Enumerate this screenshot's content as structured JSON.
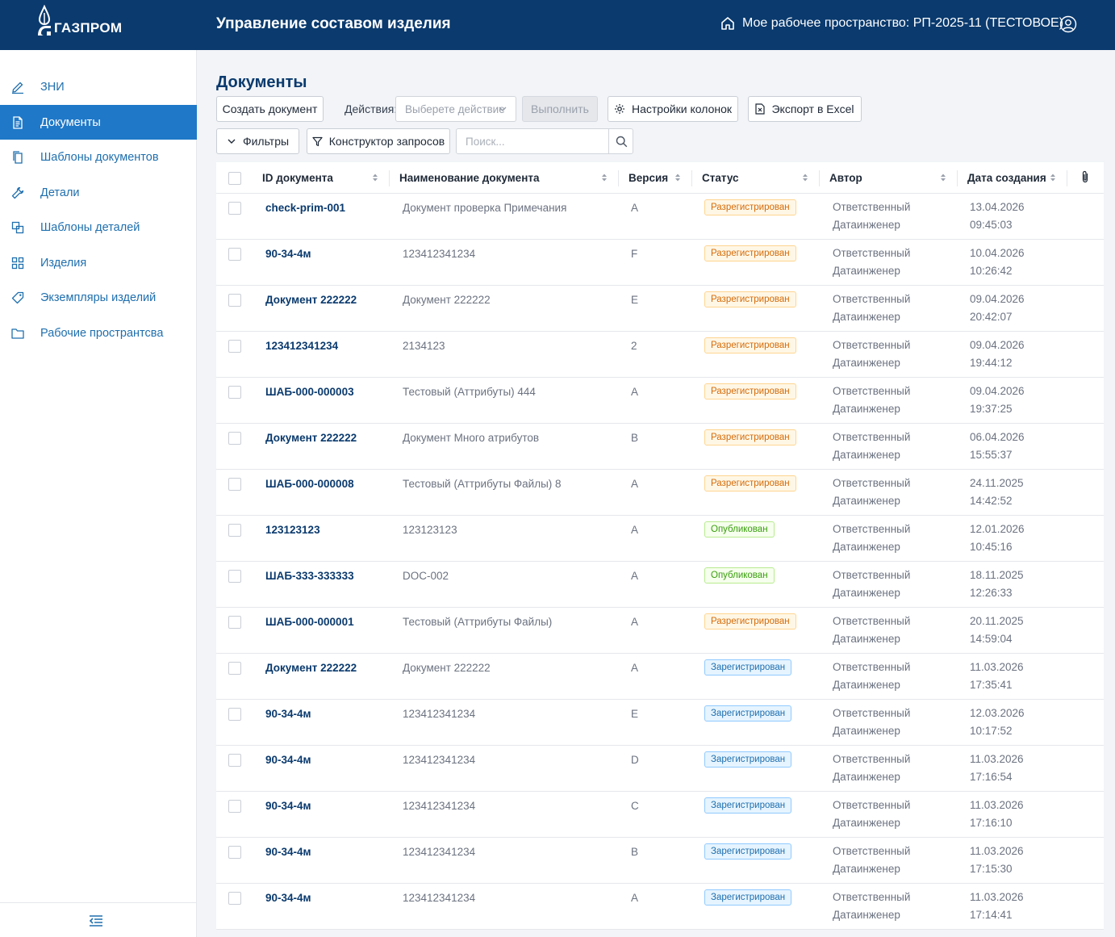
{
  "header": {
    "logo_text": "ГАЗПРОМ",
    "app_title": "Управление составом изделия",
    "workspace_label": "Мое рабочее пространство: РП-2025-11 (ТЕСТОВОЕ)"
  },
  "sidebar": {
    "items": [
      {
        "label": "ЗНИ",
        "icon": "pencil-icon"
      },
      {
        "label": "Документы",
        "icon": "document-icon"
      },
      {
        "label": "Шаблоны документов",
        "icon": "copy-icon"
      },
      {
        "label": "Детали",
        "icon": "wrench-icon"
      },
      {
        "label": "Шаблоны деталей",
        "icon": "block-icon"
      },
      {
        "label": "Изделия",
        "icon": "grid-icon"
      },
      {
        "label": "Экземпляры изделий",
        "icon": "tag-icon"
      },
      {
        "label": "Рабочие пространтсва",
        "icon": "folder-icon"
      }
    ],
    "active_index": 1
  },
  "page": {
    "title": "Документы",
    "create_button": "Создать документ",
    "actions_label": "Действия:",
    "actions_placeholder": "Выберете действие",
    "execute_button": "Выполнить",
    "columns_button": "Настройки колонок",
    "export_button": "Экспорт в Excel",
    "filters_button": "Фильтры",
    "query_button": "Конструктор запросов",
    "search_placeholder": "Поиск..."
  },
  "table": {
    "columns": [
      "ID документа",
      "Наименование документа",
      "Версия",
      "Статус",
      "Автор",
      "Дата создания"
    ],
    "rows": [
      {
        "id": "check-prim-001",
        "name": "Документ проверка Примечания",
        "version": "A",
        "status": "Разрегистрирован",
        "author1": "Ответственный",
        "author2": "Датаинженер",
        "date": "13.04.2026",
        "time": "09:45:03"
      },
      {
        "id": "90-34-4м",
        "name": "123412341234",
        "version": "F",
        "status": "Разрегистрирован",
        "author1": "Ответственный",
        "author2": "Датаинженер",
        "date": "10.04.2026",
        "time": "10:26:42"
      },
      {
        "id": "Документ 222222",
        "name": "Документ 222222",
        "version": "E",
        "status": "Разрегистрирован",
        "author1": "Ответственный",
        "author2": "Датаинженер",
        "date": "09.04.2026",
        "time": "20:42:07"
      },
      {
        "id": "123412341234",
        "name": "2134123",
        "version": "2",
        "status": "Разрегистрирован",
        "author1": "Ответственный",
        "author2": "Датаинженер",
        "date": "09.04.2026",
        "time": "19:44:12"
      },
      {
        "id": "ШАБ-000-000003",
        "name": "Тестовый (Аттрибуты) 444",
        "version": "A",
        "status": "Разрегистрирован",
        "author1": "Ответственный",
        "author2": "Датаинженер",
        "date": "09.04.2026",
        "time": "19:37:25"
      },
      {
        "id": "Документ 222222",
        "name": "Документ Много атрибутов",
        "version": "B",
        "status": "Разрегистрирован",
        "author1": "Ответственный",
        "author2": "Датаинженер",
        "date": "06.04.2026",
        "time": "15:55:37"
      },
      {
        "id": "ШАБ-000-000008",
        "name": "Тестовый (Аттрибуты Файлы) 8",
        "version": "A",
        "status": "Разрегистрирован",
        "author1": "Ответственный",
        "author2": "Датаинженер",
        "date": "24.11.2025",
        "time": "14:42:52"
      },
      {
        "id": "123123123",
        "name": "123123123",
        "version": "A",
        "status": "Опубликован",
        "author1": "Ответственный",
        "author2": "Датаинженер",
        "date": "12.01.2026",
        "time": "10:45:16"
      },
      {
        "id": "ШАБ-333-333333",
        "name": "DOC-002",
        "version": "A",
        "status": "Опубликован",
        "author1": "Ответственный",
        "author2": "Датаинженер",
        "date": "18.11.2025",
        "time": "12:26:33"
      },
      {
        "id": "ШАБ-000-000001",
        "name": "Тестовый (Аттрибуты Файлы)",
        "version": "A",
        "status": "Разрегистрирован",
        "author1": "Ответственный",
        "author2": "Датаинженер",
        "date": "20.11.2025",
        "time": "14:59:04"
      },
      {
        "id": "Документ 222222",
        "name": "Документ 222222",
        "version": "A",
        "status": "Зарегистрирован",
        "author1": "Ответственный",
        "author2": "Датаинженер",
        "date": "11.03.2026",
        "time": "17:35:41"
      },
      {
        "id": "90-34-4м",
        "name": "123412341234",
        "version": "E",
        "status": "Зарегистрирован",
        "author1": "Ответственный",
        "author2": "Датаинженер",
        "date": "12.03.2026",
        "time": "10:17:52"
      },
      {
        "id": "90-34-4м",
        "name": "123412341234",
        "version": "D",
        "status": "Зарегистрирован",
        "author1": "Ответственный",
        "author2": "Датаинженер",
        "date": "11.03.2026",
        "time": "17:16:54"
      },
      {
        "id": "90-34-4м",
        "name": "123412341234",
        "version": "C",
        "status": "Зарегистрирован",
        "author1": "Ответственный",
        "author2": "Датаинженер",
        "date": "11.03.2026",
        "time": "17:16:10"
      },
      {
        "id": "90-34-4м",
        "name": "123412341234",
        "version": "B",
        "status": "Зарегистрирован",
        "author1": "Ответственный",
        "author2": "Датаинженер",
        "date": "11.03.2026",
        "time": "17:15:30"
      },
      {
        "id": "90-34-4м",
        "name": "123412341234",
        "version": "A",
        "status": "Зарегистрирован",
        "author1": "Ответственный",
        "author2": "Датаинженер",
        "date": "11.03.2026",
        "time": "17:14:41"
      }
    ]
  },
  "colors": {
    "header_bg": "#0a3a6e",
    "accent": "#1f78c8",
    "status_deregistered": "#d46b08",
    "status_published": "#389e0d",
    "status_registered": "#1f6fae"
  }
}
